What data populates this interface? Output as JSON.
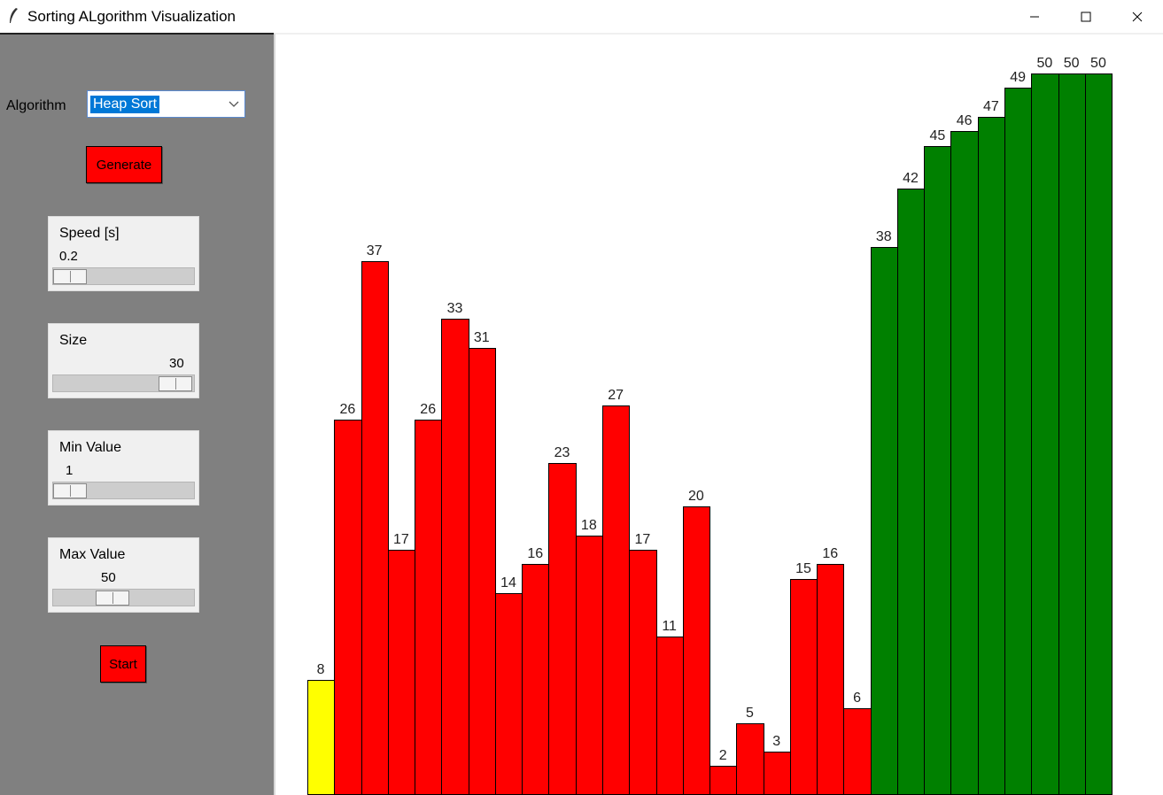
{
  "window": {
    "title": "Sorting ALgorithm Visualization"
  },
  "controls": {
    "algorithm_label": "Algorithm",
    "algorithm_selected": "Heap Sort",
    "generate_label": "Generate",
    "start_label": "Start",
    "speed": {
      "label": "Speed [s]",
      "value": "0.2",
      "fraction": 0.0
    },
    "size": {
      "label": "Size",
      "value": "30",
      "fraction": 0.98
    },
    "min_value": {
      "label": "Min Value",
      "value": "1",
      "fraction": 0.0
    },
    "max_value": {
      "label": "Max Value",
      "value": "50",
      "fraction": 0.4
    }
  },
  "colors": {
    "unsorted": "#ff0000",
    "current": "#ffff00",
    "sorted": "#008000",
    "sidebar": "#808080",
    "button": "#ff0000"
  },
  "chart_data": {
    "type": "bar",
    "values": [
      8,
      26,
      37,
      17,
      26,
      33,
      31,
      14,
      16,
      23,
      18,
      27,
      17,
      11,
      20,
      2,
      5,
      3,
      15,
      16,
      6,
      38,
      42,
      45,
      46,
      47,
      49,
      50,
      50,
      50
    ],
    "states": [
      "current",
      "unsorted",
      "unsorted",
      "unsorted",
      "unsorted",
      "unsorted",
      "unsorted",
      "unsorted",
      "unsorted",
      "unsorted",
      "unsorted",
      "unsorted",
      "unsorted",
      "unsorted",
      "unsorted",
      "unsorted",
      "unsorted",
      "unsorted",
      "unsorted",
      "unsorted",
      "unsorted",
      "sorted",
      "sorted",
      "sorted",
      "sorted",
      "sorted",
      "sorted",
      "sorted",
      "sorted",
      "sorted"
    ],
    "labels": [
      "8",
      "26",
      "37",
      "17",
      "26",
      "33",
      "31",
      "14",
      "16",
      "23",
      "18",
      "27",
      "17",
      "11",
      "20",
      "2",
      "5",
      "3",
      "15",
      "16",
      "6",
      "38",
      "42",
      "45",
      "46",
      "47",
      "49",
      "50",
      "50",
      "50"
    ],
    "ylim": [
      0,
      50
    ]
  }
}
